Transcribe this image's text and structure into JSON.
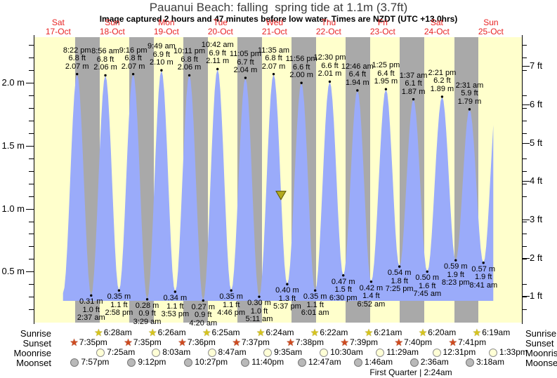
{
  "title": "Pauanui Beach: falling  spring tide at 1.1m (3.7ft)",
  "subtitle": "Image captured 2 hours and 47 minutes before low water. Times are NZDT (UTC +13.0hrs)",
  "colors": {
    "day_band": "#ffffcc",
    "night_band": "#a9a9a9",
    "tide_fill": "#9aabfa",
    "date_label_red": "#e82222",
    "capture_marker": "#b3aa1e"
  },
  "chart_data": {
    "type": "area",
    "title": "Pauanui Beach: falling spring tide at 1.1m (3.7ft)",
    "x_axis": {
      "days": [
        {
          "dow": "Sat",
          "date": "17-Oct"
        },
        {
          "dow": "Sun",
          "date": "18-Oct"
        },
        {
          "dow": "Mon",
          "date": "19-Oct"
        },
        {
          "dow": "Tue",
          "date": "20-Oct"
        },
        {
          "dow": "Wed",
          "date": "21-Oct"
        },
        {
          "dow": "Thu",
          "date": "22-Oct"
        },
        {
          "dow": "Fri",
          "date": "23-Oct"
        },
        {
          "dow": "Sat",
          "date": "24-Oct"
        },
        {
          "dow": "Sun",
          "date": "25-Oct"
        }
      ]
    },
    "y_axis_left": {
      "unit": "m",
      "labeled_ticks": [
        0.5,
        1.0,
        1.5,
        2.0
      ],
      "minor_step_m": 0.1
    },
    "y_axis_right": {
      "unit": "ft",
      "labeled_ticks": [
        1,
        2,
        3,
        4,
        5,
        6,
        7
      ]
    },
    "high_tides": [
      {
        "day": 0,
        "time": "8:22 pm",
        "ft": "6.8 ft",
        "m": "2.07 m"
      },
      {
        "day": 1,
        "time": "8:56 am",
        "ft": "6.8 ft",
        "m": "2.06 m"
      },
      {
        "day": 1,
        "time": "9:16 pm",
        "ft": "6.8 ft",
        "m": "2.07 m"
      },
      {
        "day": 2,
        "time": "9:49 am",
        "ft": "6.9 ft",
        "m": "2.10 m"
      },
      {
        "day": 2,
        "time": "10:11 pm",
        "ft": "6.8 ft",
        "m": "2.06 m"
      },
      {
        "day": 3,
        "time": "10:42 am",
        "ft": "6.9 ft",
        "m": "2.11 m"
      },
      {
        "day": 3,
        "time": "11:05 pm",
        "ft": "6.7 ft",
        "m": "2.04 m"
      },
      {
        "day": 4,
        "time": "11:35 am",
        "ft": "6.8 ft",
        "m": "2.07 m"
      },
      {
        "day": 4,
        "time": "11:56 pm",
        "ft": "6.6 ft",
        "m": "2.00 m"
      },
      {
        "day": 5,
        "time": "12:30 pm",
        "ft": "6.6 ft",
        "m": "2.01 m"
      },
      {
        "day": 6,
        "time": "12:46 am",
        "ft": "6.4 ft",
        "m": "1.94 m"
      },
      {
        "day": 6,
        "time": "1:25 pm",
        "ft": "6.4 ft",
        "m": "1.95 m"
      },
      {
        "day": 7,
        "time": "1:37 am",
        "ft": "6.1 ft",
        "m": "1.87 m"
      },
      {
        "day": 7,
        "time": "2:21 pm",
        "ft": "6.2 ft",
        "m": "1.89 m"
      },
      {
        "day": 8,
        "time": "2:31 am",
        "ft": "5.9 ft",
        "m": "1.79 m"
      }
    ],
    "low_tides": [
      {
        "day": 1,
        "time": "2:37 am",
        "ft": "1.0 ft",
        "m": "0.31 m"
      },
      {
        "day": 1,
        "time": "2:58 pm",
        "ft": "1.1 ft",
        "m": "0.35 m"
      },
      {
        "day": 2,
        "time": "3:29 am",
        "ft": "0.9 ft",
        "m": "0.28 m"
      },
      {
        "day": 2,
        "time": "3:53 pm",
        "ft": "1.1 ft",
        "m": "0.34 m"
      },
      {
        "day": 3,
        "time": "4:20 am",
        "ft": "0.9 ft",
        "m": "0.27 m"
      },
      {
        "day": 3,
        "time": "4:46 pm",
        "ft": "1.1 ft",
        "m": "0.35 m"
      },
      {
        "day": 4,
        "time": "5:11 am",
        "ft": "1.0 ft",
        "m": "0.30 m"
      },
      {
        "day": 4,
        "time": "5:37 pm",
        "ft": "1.3 ft",
        "m": "0.40 m"
      },
      {
        "day": 5,
        "time": "6:01 am",
        "ft": "1.1 ft",
        "m": "0.35 m"
      },
      {
        "day": 5,
        "time": "6:30 pm",
        "ft": "1.5 ft",
        "m": "0.47 m"
      },
      {
        "day": 6,
        "time": "6:52 am",
        "ft": "1.4 ft",
        "m": "0.42 m"
      },
      {
        "day": 6,
        "time": "7:25 pm",
        "ft": "1.8 ft",
        "m": "0.54 m"
      },
      {
        "day": 7,
        "time": "7:45 am",
        "ft": "1.6 ft",
        "m": "0.50 m"
      },
      {
        "day": 7,
        "time": "8:23 pm",
        "ft": "1.9 ft",
        "m": "0.59 m"
      },
      {
        "day": 8,
        "time": "8:41 am",
        "ft": "1.9 ft",
        "m": "0.57 m"
      }
    ],
    "capture_marker": {
      "level_m": 1.1,
      "level_ft": 3.7,
      "day": 4,
      "time": "2:50 pm"
    }
  },
  "sun_moon": {
    "rows": [
      {
        "label": "Sunrise",
        "icon": "sunrise-star",
        "events": [
          {
            "day": 1,
            "time": "6:28am"
          },
          {
            "day": 2,
            "time": "6:26am"
          },
          {
            "day": 3,
            "time": "6:25am"
          },
          {
            "day": 4,
            "time": "6:24am"
          },
          {
            "day": 5,
            "time": "6:22am"
          },
          {
            "day": 6,
            "time": "6:21am"
          },
          {
            "day": 7,
            "time": "6:20am"
          },
          {
            "day": 8,
            "time": "6:19am"
          }
        ]
      },
      {
        "label": "Sunset",
        "icon": "sunset-star",
        "events": [
          {
            "day": 0,
            "time": "7:35pm"
          },
          {
            "day": 1,
            "time": "7:35pm"
          },
          {
            "day": 2,
            "time": "7:36pm"
          },
          {
            "day": 3,
            "time": "7:37pm"
          },
          {
            "day": 4,
            "time": "7:38pm"
          },
          {
            "day": 5,
            "time": "7:39pm"
          },
          {
            "day": 6,
            "time": "7:40pm"
          },
          {
            "day": 7,
            "time": "7:41pm"
          }
        ]
      },
      {
        "label": "Moonrise",
        "icon": "moonrise-circle",
        "events": [
          {
            "day": 1,
            "time": "7:25am"
          },
          {
            "day": 2,
            "time": "8:03am"
          },
          {
            "day": 3,
            "time": "8:47am"
          },
          {
            "day": 4,
            "time": "9:35am"
          },
          {
            "day": 5,
            "time": "10:30am"
          },
          {
            "day": 6,
            "time": "11:29am"
          },
          {
            "day": 7,
            "time": "12:31pm"
          },
          {
            "day": 8,
            "time": "1:33pm"
          }
        ]
      },
      {
        "label": "Moonset",
        "icon": "moonset-circle",
        "events": [
          {
            "day": 0,
            "time": "7:57pm"
          },
          {
            "day": 1,
            "time": "9:12pm"
          },
          {
            "day": 2,
            "time": "10:27pm"
          },
          {
            "day": 3,
            "time": "11:40pm"
          },
          {
            "day": 5,
            "time": "12:47am"
          },
          {
            "day": 6,
            "time": "1:46am"
          },
          {
            "day": 7,
            "time": "2:36am"
          },
          {
            "day": 8,
            "time": "3:18am"
          }
        ]
      }
    ],
    "footer_note": "First Quarter | 2:24am"
  }
}
